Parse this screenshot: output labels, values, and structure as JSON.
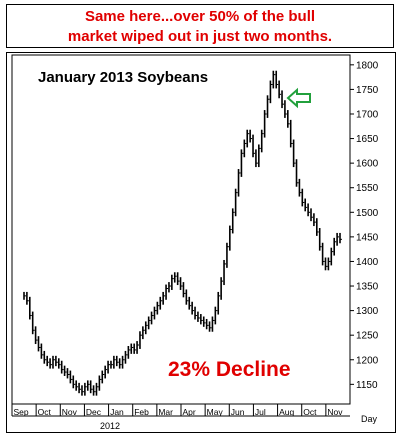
{
  "banner": {
    "line1": "Same here...over 50% of the bull",
    "line2": "market wiped out in just two months."
  },
  "chart_data": {
    "type": "line",
    "style": "ohlc-bars",
    "title": "January 2013 Soybeans",
    "annotation": "23% Decline",
    "axis_unit_label": "Day",
    "year_label": "2012",
    "ylim": [
      1110,
      1820
    ],
    "yticks": [
      1150,
      1200,
      1250,
      1300,
      1350,
      1400,
      1450,
      1500,
      1550,
      1600,
      1650,
      1700,
      1750,
      1800
    ],
    "months": [
      "Sep",
      "Oct",
      "Nov",
      "Dec",
      "Jan",
      "Feb",
      "Mar",
      "Apr",
      "May",
      "Jun",
      "Jul",
      "Aug",
      "Oct",
      "Nov"
    ],
    "grid": false,
    "colors": {
      "price": "#000000",
      "annotation": "#e00000",
      "arrow": "#22a03c",
      "banner": "#e00000"
    },
    "series": [
      {
        "values": [
          1330,
          1320,
          1290,
          1260,
          1240,
          1225,
          1210,
          1200,
          1195,
          1190,
          1200,
          1195,
          1190,
          1180,
          1175,
          1170,
          1160,
          1150,
          1145,
          1140,
          1135,
          1145,
          1150,
          1140,
          1135,
          1145,
          1160,
          1170,
          1180,
          1190,
          1190,
          1200,
          1195,
          1190,
          1200,
          1210,
          1220,
          1225,
          1220,
          1230,
          1250,
          1260,
          1270,
          1280,
          1290,
          1300,
          1310,
          1320,
          1330,
          1345,
          1350,
          1365,
          1370,
          1360,
          1350,
          1335,
          1320,
          1310,
          1300,
          1290,
          1285,
          1280,
          1275,
          1270,
          1265,
          1280,
          1300,
          1330,
          1360,
          1395,
          1430,
          1465,
          1500,
          1540,
          1580,
          1620,
          1640,
          1660,
          1650,
          1620,
          1600,
          1630,
          1660,
          1700,
          1730,
          1760,
          1780,
          1760,
          1740,
          1720,
          1700,
          1680,
          1640,
          1600,
          1560,
          1540,
          1520,
          1510,
          1500,
          1490,
          1480,
          1460,
          1430,
          1400,
          1390,
          1400,
          1420,
          1440,
          1450,
          1445
        ]
      }
    ]
  }
}
